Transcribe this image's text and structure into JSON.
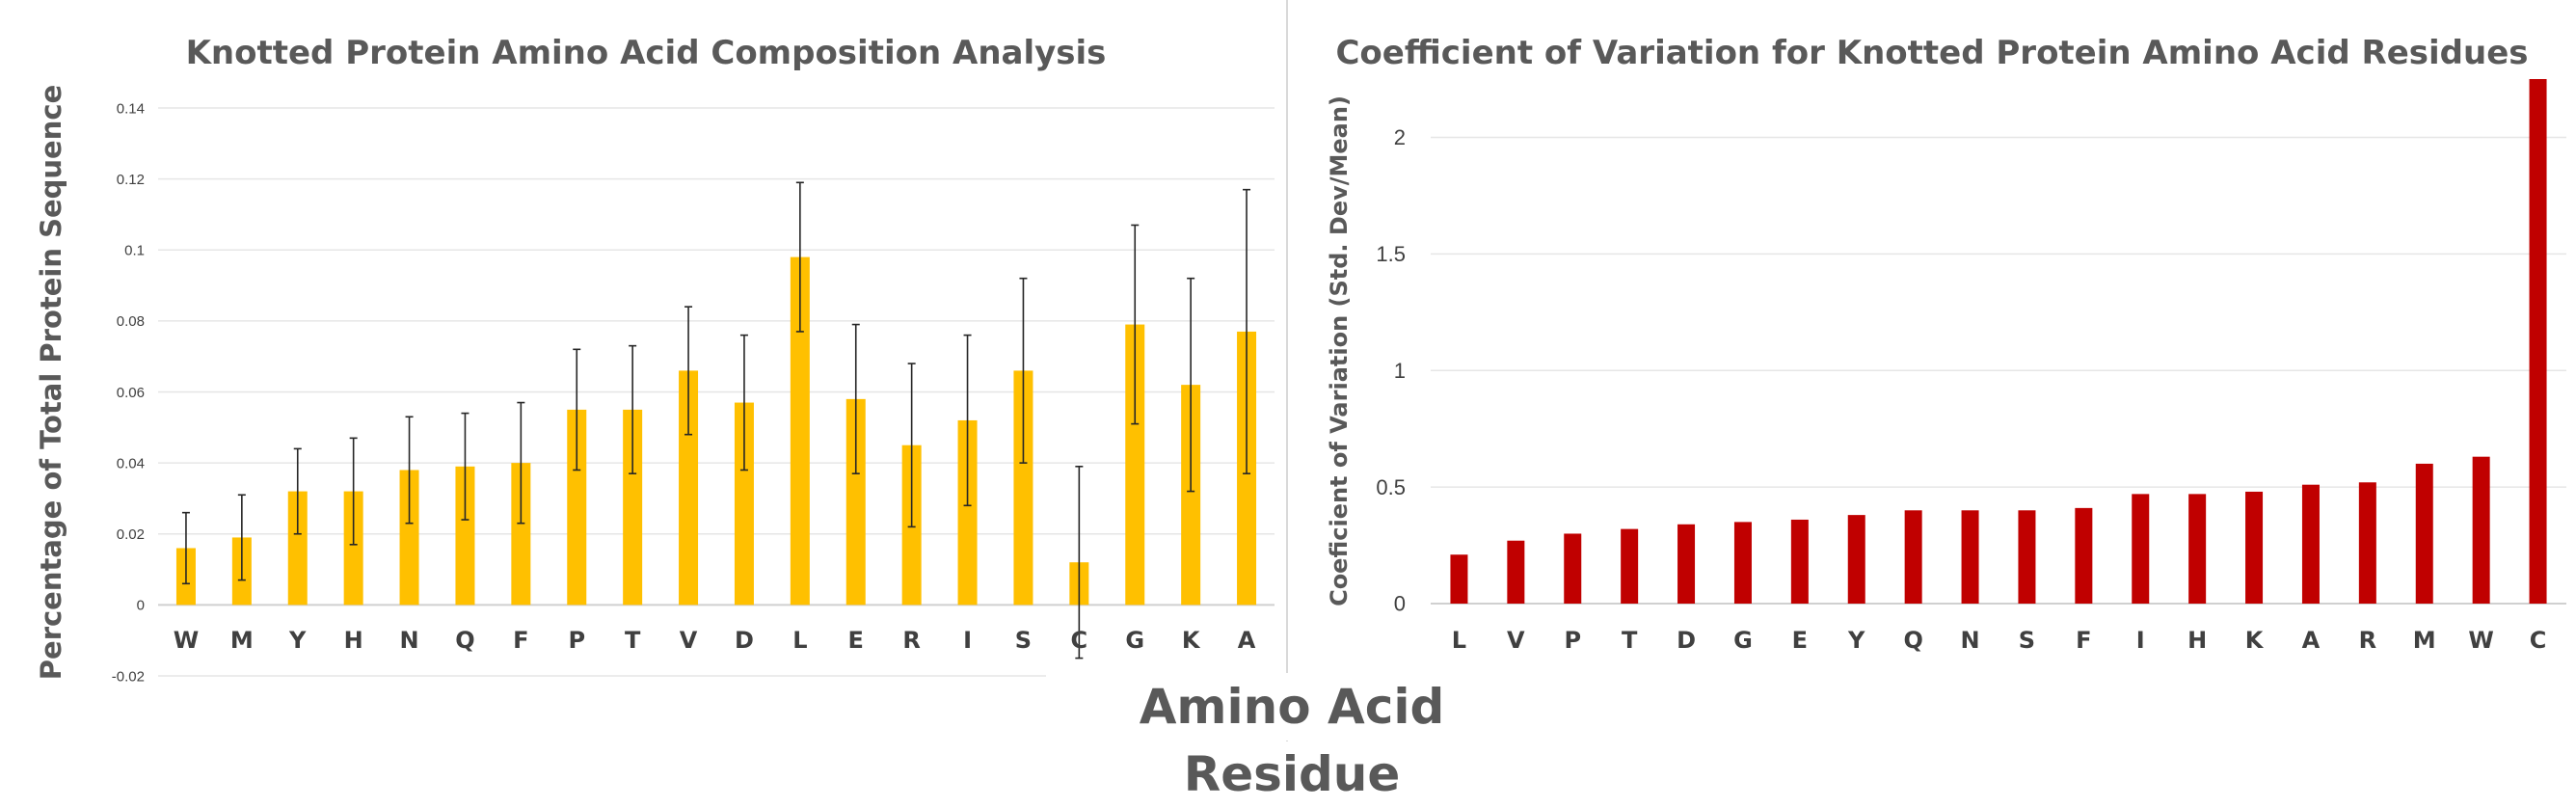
{
  "chart_data": [
    {
      "type": "bar",
      "title": "Knotted Protein Amino Acid Composition Analysis",
      "ylabel": "Percentage of Total Protein Sequence",
      "xlabel": "",
      "ylim": [
        -0.02,
        0.14
      ],
      "yticks": [
        "-0.02",
        "0",
        "0.02",
        "0.04",
        "0.06",
        "0.08",
        "0.1",
        "0.12",
        "0.14"
      ],
      "ytick_values": [
        -0.02,
        0,
        0.02,
        0.04,
        0.06,
        0.08,
        0.1,
        0.12,
        0.14
      ],
      "grid": true,
      "color": "#FFC000",
      "error_bar_color": "#262626",
      "categories": [
        "W",
        "M",
        "Y",
        "H",
        "N",
        "Q",
        "F",
        "P",
        "T",
        "V",
        "D",
        "L",
        "E",
        "R",
        "I",
        "S",
        "C",
        "G",
        "K",
        "A"
      ],
      "values": [
        0.016,
        0.019,
        0.032,
        0.032,
        0.038,
        0.039,
        0.04,
        0.055,
        0.055,
        0.066,
        0.057,
        0.098,
        0.058,
        0.045,
        0.052,
        0.066,
        0.012,
        0.079,
        0.062,
        0.077
      ],
      "errors": [
        0.01,
        0.012,
        0.012,
        0.015,
        0.015,
        0.015,
        0.017,
        0.017,
        0.018,
        0.018,
        0.019,
        0.021,
        0.021,
        0.023,
        0.024,
        0.026,
        0.027,
        0.028,
        0.03,
        0.04
      ]
    },
    {
      "type": "bar",
      "title": "Coefficient of Variation for Knotted Protein Amino Acid Residues",
      "ylabel": "Coeficient of Variation (Std. Dev/Mean)",
      "xlabel": "",
      "ylim": [
        0,
        2.25
      ],
      "yticks": [
        "0",
        "0.5",
        "1",
        "1.5",
        "2"
      ],
      "ytick_values": [
        0,
        0.5,
        1,
        1.5,
        2
      ],
      "grid": true,
      "color": "#C00000",
      "categories": [
        "L",
        "V",
        "P",
        "T",
        "D",
        "G",
        "E",
        "Y",
        "Q",
        "N",
        "S",
        "F",
        "I",
        "H",
        "K",
        "A",
        "R",
        "M",
        "W",
        "C"
      ],
      "values": [
        0.21,
        0.27,
        0.3,
        0.32,
        0.34,
        0.35,
        0.36,
        0.38,
        0.4,
        0.4,
        0.4,
        0.41,
        0.47,
        0.47,
        0.48,
        0.51,
        0.52,
        0.6,
        0.63,
        2.25
      ]
    }
  ],
  "shared_xlabel": "Amino Acid Residue"
}
